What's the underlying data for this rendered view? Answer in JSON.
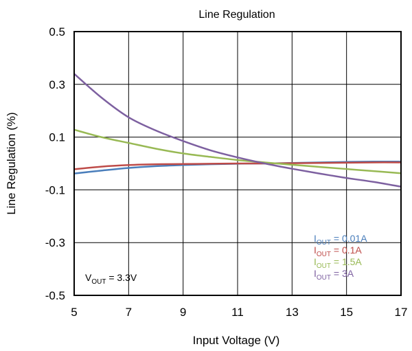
{
  "chart_data": {
    "type": "line",
    "title": "Line Regulation",
    "xlabel": "Input Voltage (V)",
    "ylabel": "Line Regulation (%)",
    "xlim": [
      5,
      17
    ],
    "ylim": [
      -0.5,
      0.5
    ],
    "x_ticks": [
      "5",
      "7",
      "9",
      "11",
      "13",
      "15",
      "17"
    ],
    "y_ticks": [
      "0.5",
      "0.3",
      "0.1",
      "-0.1",
      "-0.3",
      "-0.5"
    ],
    "grid": true,
    "legend_placement": "bottom-right",
    "annotation": {
      "main": "V",
      "sub": "OUT",
      "rest": " = 3.3V"
    },
    "series": [
      {
        "legend": {
          "main": "I",
          "sub": "OUT",
          "rest": " = 0.01A"
        },
        "color": "#4a7ebb",
        "x": [
          5,
          6,
          7,
          8,
          9,
          10,
          11,
          12,
          13,
          14,
          15,
          16,
          17
        ],
        "y": [
          -0.038,
          -0.027,
          -0.017,
          -0.01,
          -0.006,
          -0.003,
          -0.001,
          0.0,
          0.002,
          0.004,
          0.006,
          0.007,
          0.007
        ]
      },
      {
        "legend": {
          "main": "I",
          "sub": "OUT",
          "rest": " = 0.1A"
        },
        "color": "#be4b48",
        "x": [
          5,
          6,
          7,
          8,
          9,
          10,
          11,
          12,
          13,
          14,
          15,
          16,
          17
        ],
        "y": [
          -0.022,
          -0.012,
          -0.006,
          -0.003,
          -0.002,
          -0.001,
          0.0,
          0.0,
          0.001,
          0.002,
          0.003,
          0.004,
          0.004
        ]
      },
      {
        "legend": {
          "main": "I",
          "sub": "OUT",
          "rest": " = 1.5A"
        },
        "color": "#98b954",
        "x": [
          5,
          6,
          7,
          8,
          9,
          10,
          11,
          12,
          13,
          14,
          15,
          16,
          17
        ],
        "y": [
          0.128,
          0.1,
          0.078,
          0.056,
          0.038,
          0.025,
          0.013,
          0.004,
          -0.005,
          -0.013,
          -0.021,
          -0.029,
          -0.037
        ]
      },
      {
        "legend": {
          "main": "I",
          "sub": "OUT",
          "rest": " = 3A"
        },
        "color": "#7d60a0",
        "x": [
          5,
          6,
          7,
          8,
          9,
          10,
          11,
          12,
          13,
          14,
          15,
          16,
          17
        ],
        "y": [
          0.34,
          0.25,
          0.175,
          0.125,
          0.085,
          0.05,
          0.023,
          0.0,
          -0.02,
          -0.038,
          -0.055,
          -0.07,
          -0.088
        ]
      }
    ]
  }
}
